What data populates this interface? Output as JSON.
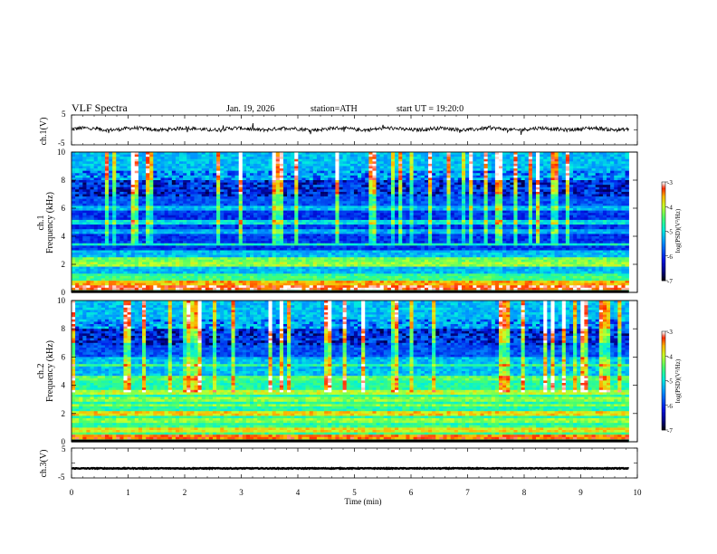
{
  "header": {
    "title": "VLF  Spectra",
    "date": "Jan. 19, 2026",
    "station": "station=ATH",
    "start": "start  UT  =    19:20:0"
  },
  "chart_data": [
    {
      "type": "line",
      "name_label": "ch.1(V)",
      "ylim": [
        -5,
        5
      ],
      "yticks": [
        "5",
        "-5"
      ],
      "xlim": [
        0,
        10
      ],
      "series_level": 0.3,
      "noise_level": "high"
    },
    {
      "type": "heatmap",
      "ylabel": "ch.1\nFrequency (kHz)",
      "ylabel_lines": [
        "ch.1",
        "Frequency (kHz)"
      ],
      "ylim": [
        0,
        10
      ],
      "yticks": [
        "0",
        "2",
        "4",
        "6",
        "8",
        "10"
      ],
      "xlim": [
        0,
        9.85
      ],
      "colorbar": {
        "label": "log(PSD)(V²/Hz)",
        "ticks": [
          "-3",
          "-4",
          "-5",
          "-6",
          "-7"
        ],
        "range": [
          -7,
          -3
        ]
      }
    },
    {
      "type": "heatmap",
      "ylabel": "ch.2\nFrequency (kHz)",
      "ylabel_lines": [
        "ch.2",
        "Frequency (kHz)"
      ],
      "ylim": [
        0,
        10
      ],
      "yticks": [
        "0",
        "2",
        "4",
        "6",
        "8",
        "10"
      ],
      "xlim": [
        0,
        9.85
      ],
      "colorbar": {
        "label": "log(PSD)(V²/Hz)",
        "ticks": [
          "-3",
          "-4",
          "-5",
          "-6",
          "-7"
        ],
        "range": [
          -7,
          -3
        ]
      }
    },
    {
      "type": "line",
      "name_label": "ch.3(V)",
      "ylim": [
        -5,
        5
      ],
      "yticks": [
        "5",
        "-5"
      ],
      "xlim": [
        0,
        10
      ],
      "series_level": -1.8,
      "noise_level": "low"
    }
  ],
  "xaxis": {
    "label": "Time  (min)",
    "ticks": [
      "0",
      "1",
      "2",
      "3",
      "4",
      "5",
      "6",
      "7",
      "8",
      "9",
      "10"
    ],
    "range": [
      0,
      10
    ]
  }
}
